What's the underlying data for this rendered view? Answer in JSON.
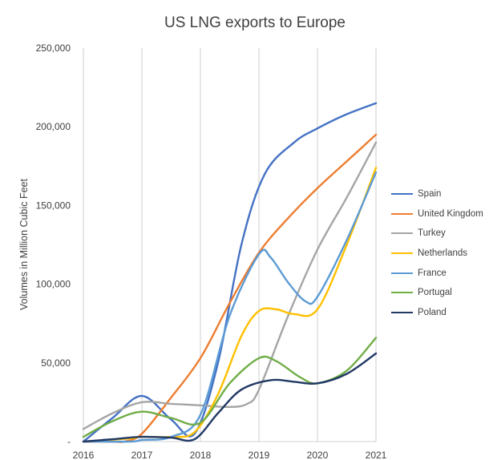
{
  "chart_data": {
    "type": "line",
    "title": "US LNG exports to Europe",
    "xlabel": "",
    "ylabel": "Volumes in Million Cubic Feet",
    "x": [
      2016,
      2017,
      2018,
      2019,
      2020,
      2021
    ],
    "x_tick_labels": [
      "2016",
      "2017",
      "2018",
      "2019",
      "2020",
      "2021"
    ],
    "ylim": [
      0,
      250000
    ],
    "y_ticks": [
      0,
      50000,
      100000,
      150000,
      200000,
      250000
    ],
    "y_tick_labels": [
      "-",
      "50,000",
      "100,000",
      "150,000",
      "200,000",
      "250,000"
    ],
    "grid": "vertical",
    "legend_position": "right",
    "series": [
      {
        "name": "Spain",
        "color": "#4472C4",
        "points": [
          [
            2016,
            0
          ],
          [
            2016.5,
            15000
          ],
          [
            2017,
            29000
          ],
          [
            2017.5,
            14000
          ],
          [
            2017.9,
            5000
          ],
          [
            2018.3,
            50000
          ],
          [
            2018.7,
            125000
          ],
          [
            2019.1,
            170000
          ],
          [
            2019.6,
            190000
          ],
          [
            2020,
            199000
          ],
          [
            2020.5,
            208000
          ],
          [
            2021,
            215000
          ]
        ]
      },
      {
        "name": "United Kingdom",
        "color": "#ED7D31",
        "points": [
          [
            2016,
            0
          ],
          [
            2016.5,
            0
          ],
          [
            2016.7,
            0
          ],
          [
            2017,
            5000
          ],
          [
            2017.5,
            28000
          ],
          [
            2018,
            53000
          ],
          [
            2018.5,
            88000
          ],
          [
            2019,
            120000
          ],
          [
            2019.5,
            142000
          ],
          [
            2020,
            161000
          ],
          [
            2020.5,
            178000
          ],
          [
            2021,
            195000
          ]
        ]
      },
      {
        "name": "Turkey",
        "color": "#A5A5A5",
        "points": [
          [
            2016,
            8000
          ],
          [
            2016.5,
            18000
          ],
          [
            2017,
            25000
          ],
          [
            2017.5,
            24000
          ],
          [
            2018,
            23000
          ],
          [
            2018.5,
            22000
          ],
          [
            2018.8,
            24000
          ],
          [
            2019,
            33000
          ],
          [
            2019.5,
            80000
          ],
          [
            2020,
            122000
          ],
          [
            2020.5,
            155000
          ],
          [
            2021,
            190000
          ]
        ]
      },
      {
        "name": "Netherlands",
        "color": "#FFC000",
        "points": [
          [
            2016,
            0
          ],
          [
            2016.8,
            2000
          ],
          [
            2017,
            3000
          ],
          [
            2017.5,
            3000
          ],
          [
            2017.9,
            6000
          ],
          [
            2018.3,
            30000
          ],
          [
            2018.7,
            67000
          ],
          [
            2019,
            83000
          ],
          [
            2019.3,
            84000
          ],
          [
            2019.6,
            81000
          ],
          [
            2020,
            84000
          ],
          [
            2020.5,
            125000
          ],
          [
            2021,
            174000
          ]
        ]
      },
      {
        "name": "France",
        "color": "#5B9BD5",
        "points": [
          [
            2016,
            0
          ],
          [
            2016.8,
            0
          ],
          [
            2017,
            1000
          ],
          [
            2017.5,
            3000
          ],
          [
            2018,
            17000
          ],
          [
            2018.5,
            80000
          ],
          [
            2019,
            119000
          ],
          [
            2019.2,
            117000
          ],
          [
            2019.5,
            101000
          ],
          [
            2019.8,
            89000
          ],
          [
            2020,
            92000
          ],
          [
            2020.5,
            128000
          ],
          [
            2021,
            171000
          ]
        ]
      },
      {
        "name": "Portugal",
        "color": "#70AD47",
        "points": [
          [
            2016,
            3000
          ],
          [
            2016.5,
            13000
          ],
          [
            2017,
            19000
          ],
          [
            2017.5,
            15000
          ],
          [
            2018,
            12000
          ],
          [
            2018.5,
            37000
          ],
          [
            2019,
            53000
          ],
          [
            2019.3,
            51000
          ],
          [
            2019.7,
            41000
          ],
          [
            2020,
            37000
          ],
          [
            2020.5,
            45000
          ],
          [
            2021,
            66000
          ]
        ]
      },
      {
        "name": "Poland",
        "color": "#203864",
        "points": [
          [
            2016,
            0
          ],
          [
            2016.5,
            1500
          ],
          [
            2017,
            3000
          ],
          [
            2017.5,
            2500
          ],
          [
            2017.9,
            1500
          ],
          [
            2018.3,
            18000
          ],
          [
            2018.7,
            33000
          ],
          [
            2019.2,
            39000
          ],
          [
            2019.6,
            38000
          ],
          [
            2020,
            37000
          ],
          [
            2020.5,
            43000
          ],
          [
            2021,
            56000
          ]
        ]
      }
    ]
  }
}
